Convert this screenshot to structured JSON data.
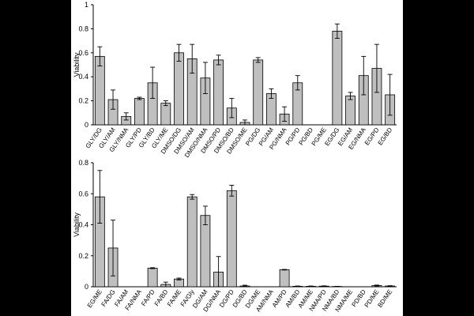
{
  "colors": {
    "bar_fill": "#bfbfbf",
    "bar_stroke": "#000000",
    "axis": "#000000",
    "background": "#ffffff",
    "matte": "#000000"
  },
  "chart_data": [
    {
      "type": "bar",
      "title": "",
      "xlabel": "",
      "ylabel": "Viability",
      "ylim": [
        0,
        1
      ],
      "yticks": [
        "0",
        "0.2",
        "0.4",
        "0.6",
        "0.8",
        "1"
      ],
      "grid": false,
      "categories": [
        "GLY/DG",
        "GLY/AM",
        "GLY/NMA",
        "GLY/PD",
        "GLY/BD",
        "GLY/ME",
        "DMSO/DG",
        "DMSO/AM",
        "DMSO/NMA",
        "DMSO/PD",
        "DMSO/BD",
        "DMSO/ME",
        "PG/DG",
        "PG/AM",
        "PG/NMA",
        "PG/PD",
        "PG/BD",
        "PG/ME",
        "EG/DG",
        "EG/AM",
        "EG/NMA",
        "EG/PD",
        "EG/BD"
      ],
      "values": [
        0.57,
        0.21,
        0.07,
        0.22,
        0.35,
        0.18,
        0.6,
        0.55,
        0.39,
        0.54,
        0.14,
        0.02,
        0.54,
        0.26,
        0.09,
        0.35,
        0.0,
        0.0,
        0.78,
        0.24,
        0.41,
        0.47,
        0.25
      ],
      "errors": [
        0.08,
        0.08,
        0.03,
        0.01,
        0.13,
        0.02,
        0.07,
        0.12,
        0.13,
        0.04,
        0.08,
        0.02,
        0.02,
        0.04,
        0.06,
        0.06,
        0.0,
        0.0,
        0.06,
        0.03,
        0.16,
        0.2,
        0.17
      ]
    },
    {
      "type": "bar",
      "title": "",
      "xlabel": "",
      "ylabel": "Viability",
      "ylim": [
        0,
        0.8
      ],
      "yticks": [
        "0",
        "0.2",
        "0.4",
        "0.6",
        "0.8"
      ],
      "grid": false,
      "categories": [
        "EG/ME",
        "FA/DG",
        "FA/AM",
        "FA/NMA",
        "FA/PD",
        "FA/BD",
        "FA/ME",
        "FA/Gly",
        "DG/AM",
        "DG/NMA",
        "DG/PD",
        "DG/BD",
        "DG/ME",
        "AM/NMA",
        "AM/PD",
        "AM/BD",
        "AM/ME",
        "NMA/PD",
        "NMA/BD",
        "NMA/ME",
        "PD/BD",
        "PD/ME",
        "BD/ME"
      ],
      "values": [
        0.58,
        0.25,
        0.0,
        0.0,
        0.12,
        0.015,
        0.05,
        0.58,
        0.46,
        0.095,
        0.62,
        0.005,
        0.0,
        0.0,
        0.11,
        0.003,
        0.003,
        0.004,
        0.002,
        0.0,
        0.0,
        0.008,
        0.005
      ],
      "errors": [
        0.17,
        0.18,
        0.0,
        0.0,
        0.003,
        0.015,
        0.006,
        0.015,
        0.06,
        0.1,
        0.035,
        0.005,
        0.0,
        0.0,
        0.002,
        0.002,
        0.002,
        0.002,
        0.001,
        0.0,
        0.0,
        0.003,
        0.002
      ]
    }
  ]
}
